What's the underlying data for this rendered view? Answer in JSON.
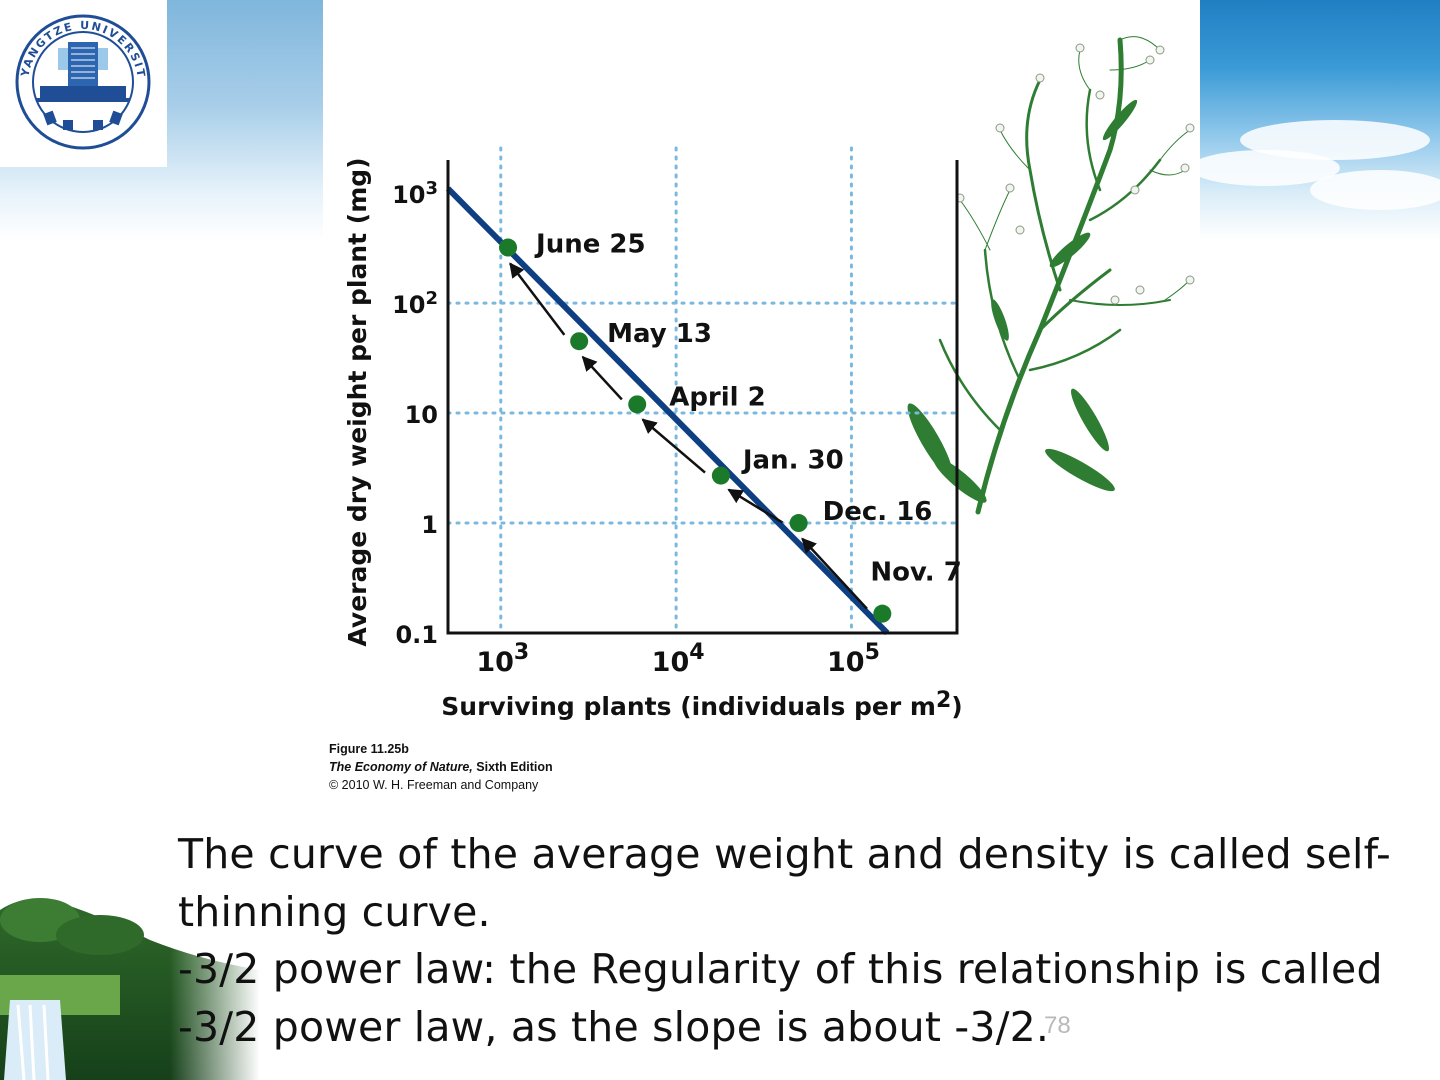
{
  "logo": {
    "text": "YANGTZE UNIVERSITY",
    "icon": "university-seal-icon"
  },
  "chart_data": {
    "type": "line",
    "xscale": "log",
    "yscale": "log",
    "xlabel": "Surviving plants (individuals per m",
    "xlabel_sup": "2",
    "xlabel_close": ")",
    "ylabel": "Average dry weight per plant (mg)",
    "xlim": [
      500,
      400000
    ],
    "ylim": [
      0.1,
      2000
    ],
    "xticks": [
      {
        "value": 1000,
        "base": "10",
        "exp": "3"
      },
      {
        "value": 10000,
        "base": "10",
        "exp": "4"
      },
      {
        "value": 100000,
        "base": "10",
        "exp": "5"
      }
    ],
    "yticks": [
      {
        "value": 1000,
        "base": "10",
        "exp": "3"
      },
      {
        "value": 100,
        "base": "10",
        "exp": "2"
      },
      {
        "value": 10,
        "base": "10",
        "exp": ""
      },
      {
        "value": 1,
        "base": "1",
        "exp": ""
      },
      {
        "value": 0.1,
        "base": "0.1",
        "exp": ""
      }
    ],
    "grid": true,
    "points": [
      {
        "label": "Nov. 7",
        "x": 150000,
        "y": 0.15
      },
      {
        "label": "Dec. 16",
        "x": 50000,
        "y": 1.0
      },
      {
        "label": "Jan. 30",
        "x": 18000,
        "y": 2.7
      },
      {
        "label": "April 2",
        "x": 6000,
        "y": 12
      },
      {
        "label": "May 13",
        "x": 2800,
        "y": 45
      },
      {
        "label": "June 25",
        "x": 1100,
        "y": 320
      }
    ],
    "thinning_line": {
      "x": [
        500,
        160000
      ],
      "y": [
        1100,
        0.1
      ]
    },
    "colors": {
      "points": "#1a7a2a",
      "line": "#0e3f82",
      "grid": "#7ab8e0",
      "arrows": "#111111"
    }
  },
  "caption": {
    "figure": "Figure 11.25b",
    "book": "The Economy of Nature,",
    "edition": " Sixth Edition",
    "copyright": "© 2010 W. H. Freeman and Company"
  },
  "body": {
    "line1": "The curve of the average weight and density is called self-",
    "line2": "thinning curve.",
    "line3": "-3/2 power law: the Regularity of this relationship is called",
    "line4": "-3/2 power law, as the slope is about -3/2."
  },
  "slide_number": "78"
}
